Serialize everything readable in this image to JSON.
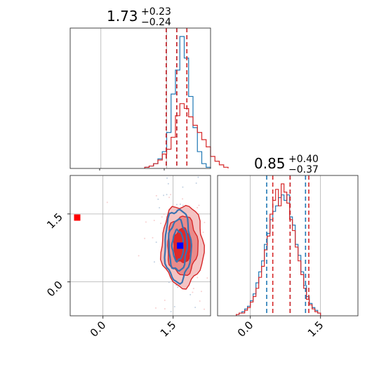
{
  "chart_data": [
    {
      "type": "histogram",
      "panel": "marginal-param-1",
      "title_value": "1.73",
      "title_plus": "+0.23",
      "title_minus": "−0.24",
      "xlim": [
        -0.7,
        2.5
      ],
      "bin_width": 0.1,
      "grid": true,
      "series": [
        {
          "color": "#1f77b4",
          "bin_edges_start": 1.0,
          "counts": [
            1,
            2,
            4,
            8,
            14,
            30,
            62,
            82,
            110,
            92,
            60,
            34,
            14,
            4,
            1
          ],
          "quantiles": [
            1.49,
            1.73,
            1.96
          ]
        },
        {
          "color": "#d62728",
          "bin_edges_start": 1.0,
          "counts": [
            1,
            2,
            4,
            7,
            12,
            16,
            26,
            44,
            54,
            50,
            43,
            36,
            30,
            24,
            18,
            10,
            6,
            3,
            1
          ],
          "quantiles": [
            1.49,
            1.73,
            1.96
          ]
        }
      ]
    },
    {
      "type": "histogram",
      "panel": "marginal-param-2",
      "title_value": "0.85",
      "title_plus": "+0.40",
      "title_minus": "−0.37",
      "xlim": [
        -0.7,
        2.3
      ],
      "xticks": [
        "0.0",
        "1.5"
      ],
      "xtick_values": [
        0.0,
        1.5
      ],
      "bin_width": 0.06,
      "grid": true,
      "series": [
        {
          "color": "#1f77b4",
          "bin_edges_start": -0.3,
          "counts": [
            1,
            2,
            3,
            5,
            7,
            11,
            16,
            24,
            32,
            40,
            52,
            60,
            70,
            76,
            80,
            86,
            88,
            84,
            88,
            72,
            66,
            52,
            44,
            32,
            22,
            14,
            9,
            6,
            4,
            2
          ],
          "quantiles": [
            0.35,
            0.85,
            1.18
          ]
        },
        {
          "color": "#d62728",
          "bin_edges_start": -0.3,
          "counts": [
            1,
            2,
            2,
            4,
            6,
            10,
            14,
            20,
            28,
            36,
            48,
            58,
            74,
            84,
            92,
            80,
            96,
            90,
            82,
            70,
            62,
            50,
            40,
            30,
            20,
            12,
            8,
            5,
            3,
            2
          ],
          "quantiles": [
            0.48,
            0.85,
            1.25
          ]
        }
      ]
    },
    {
      "type": "contour",
      "panel": "joint-param-1-vs-param-2",
      "xlim": [
        -0.7,
        2.3
      ],
      "ylim": [
        -0.75,
        2.35
      ],
      "xticks": [
        "0.0",
        "1.5"
      ],
      "xtick_values": [
        0.0,
        1.5
      ],
      "yticks": [
        "0.0",
        "1.5"
      ],
      "ytick_values": [
        0.0,
        1.5
      ],
      "grid": true,
      "series": [
        {
          "color": "#1f77b4",
          "center": [
            1.6,
            0.8
          ],
          "spread": [
            0.28,
            0.8
          ],
          "levels": [
            0.39,
            0.86,
            0.99
          ]
        },
        {
          "color": "#d62728",
          "center": [
            1.7,
            0.8
          ],
          "spread": [
            0.45,
            0.9
          ],
          "levels": [
            0.39,
            0.86,
            0.99
          ]
        }
      ],
      "markers": [
        {
          "color": "#ff0000",
          "x": -0.55,
          "y": 1.42
        },
        {
          "color": "#0000ff",
          "x": 1.65,
          "y": 0.8
        }
      ]
    }
  ]
}
